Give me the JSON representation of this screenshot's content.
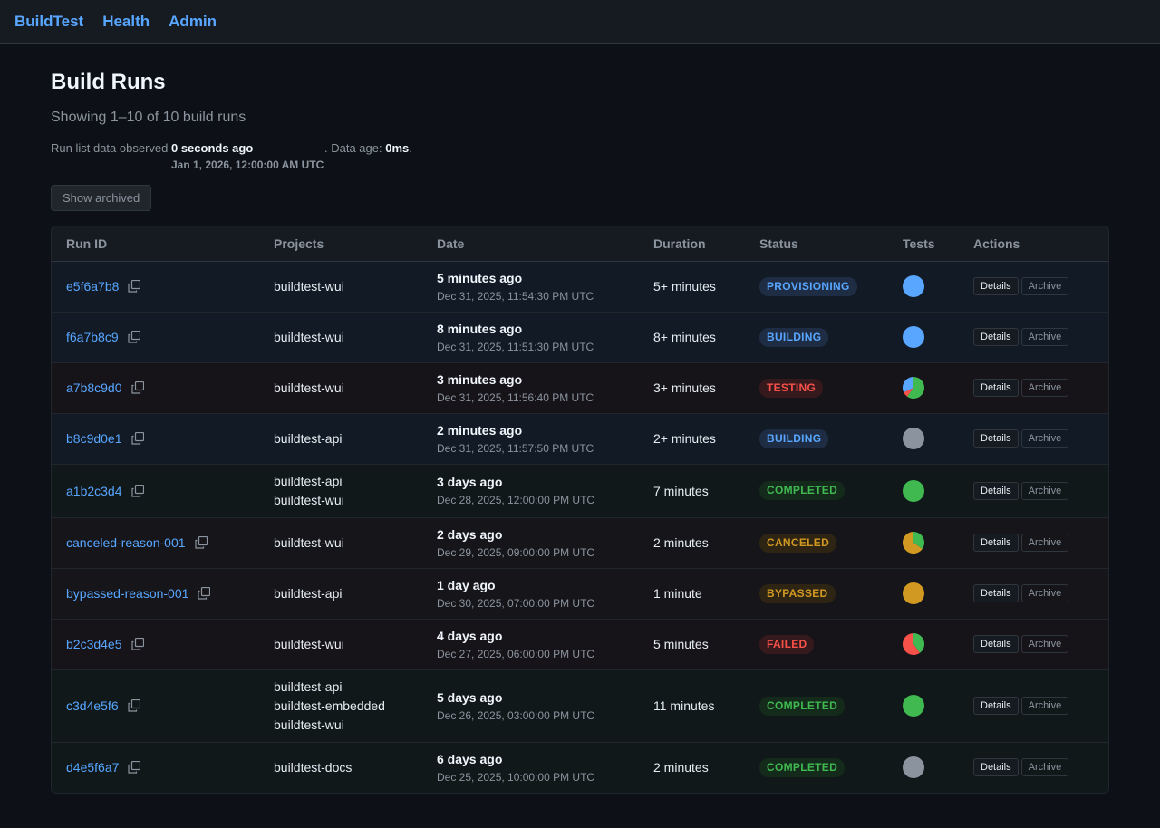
{
  "nav": {
    "brand": "BuildTest",
    "health": "Health",
    "admin": "Admin"
  },
  "page": {
    "title": "Build Runs",
    "subtitle": "Showing 1–10 of 10 build runs",
    "observed_prefix": "Run list data observed",
    "observed_ago": "0 seconds ago",
    "data_age_prefix": ". Data age:",
    "data_age_value": "0ms",
    "data_age_suffix": ".",
    "observed_timestamp": "Jan 1, 2026, 12:00:00 AM UTC",
    "show_archived_label": "Show archived"
  },
  "table": {
    "headers": {
      "run_id": "Run ID",
      "projects": "Projects",
      "date": "Date",
      "duration": "Duration",
      "status": "Status",
      "tests": "Tests",
      "actions": "Actions"
    },
    "details_label": "Details",
    "archive_label": "Archive"
  },
  "colors": {
    "passed": "#3fb950",
    "failed": "#f85149",
    "pending": "#58a6ff",
    "skipped": "#d29922",
    "none": "#8b949e",
    "link": "#58a6ff"
  },
  "runs": [
    {
      "id": "e5f6a7b8",
      "projects": [
        "buildtest-wui"
      ],
      "relative": "5 minutes ago",
      "absolute": "Dec 31, 2025, 11:54:30 PM UTC",
      "duration": "5+ minutes",
      "status": "PROVISIONING",
      "status_color": "blue",
      "row": "blue",
      "h": "h56",
      "tests": [
        {
          "color": "#58a6ff",
          "frac": 1
        }
      ]
    },
    {
      "id": "f6a7b8c9",
      "projects": [
        "buildtest-wui"
      ],
      "relative": "8 minutes ago",
      "absolute": "Dec 31, 2025, 11:51:30 PM UTC",
      "duration": "8+ minutes",
      "status": "BUILDING",
      "status_color": "blue",
      "row": "blue",
      "h": "h56",
      "tests": [
        {
          "color": "#58a6ff",
          "frac": 1
        }
      ]
    },
    {
      "id": "a7b8c9d0",
      "projects": [
        "buildtest-wui"
      ],
      "relative": "3 minutes ago",
      "absolute": "Dec 31, 2025, 11:56:40 PM UTC",
      "duration": "3+ minutes",
      "status": "TESTING",
      "status_color": "red",
      "row": "red",
      "h": "h56",
      "tests": [
        {
          "color": "#3fb950",
          "frac": 0.6
        },
        {
          "color": "#f85149",
          "frac": 0.08
        },
        {
          "color": "#58a6ff",
          "frac": 0.32
        }
      ]
    },
    {
      "id": "b8c9d0e1",
      "projects": [
        "buildtest-api"
      ],
      "relative": "2 minutes ago",
      "absolute": "Dec 31, 2025, 11:57:50 PM UTC",
      "duration": "2+ minutes",
      "status": "BUILDING",
      "status_color": "blue",
      "row": "blue",
      "h": "h56",
      "tests": [
        {
          "color": "#8b949e",
          "frac": 1
        }
      ]
    },
    {
      "id": "a1b2c3d4",
      "projects": [
        "buildtest-api",
        "buildtest-wui"
      ],
      "relative": "3 days ago",
      "absolute": "Dec 28, 2025, 12:00:00 PM UTC",
      "duration": "7 minutes",
      "status": "COMPLETED",
      "status_color": "green",
      "row": "green",
      "h": "h59",
      "tests": [
        {
          "color": "#3fb950",
          "frac": 1
        }
      ]
    },
    {
      "id": "canceled-reason-001",
      "projects": [
        "buildtest-wui"
      ],
      "relative": "2 days ago",
      "absolute": "Dec 29, 2025, 09:00:00 PM UTC",
      "duration": "2 minutes",
      "status": "CANCELED",
      "status_color": "amber",
      "row": "amber",
      "h": "h56",
      "tests": [
        {
          "color": "#3fb950",
          "frac": 0.35
        },
        {
          "color": "#d29922",
          "frac": 0.65
        }
      ]
    },
    {
      "id": "bypassed-reason-001",
      "projects": [
        "buildtest-api"
      ],
      "relative": "1 day ago",
      "absolute": "Dec 30, 2025, 07:00:00 PM UTC",
      "duration": "1 minute",
      "status": "BYPASSED",
      "status_color": "amber",
      "row": "amber",
      "h": "h56",
      "tests": [
        {
          "color": "#d29922",
          "frac": 1
        }
      ]
    },
    {
      "id": "b2c3d4e5",
      "projects": [
        "buildtest-wui"
      ],
      "relative": "4 days ago",
      "absolute": "Dec 27, 2025, 06:00:00 PM UTC",
      "duration": "5 minutes",
      "status": "FAILED",
      "status_color": "red",
      "row": "red",
      "h": "h56",
      "tests": [
        {
          "color": "#3fb950",
          "frac": 0.4
        },
        {
          "color": "#f85149",
          "frac": 0.6
        }
      ]
    },
    {
      "id": "c3d4e5f6",
      "projects": [
        "buildtest-api",
        "buildtest-embedded",
        "buildtest-wui"
      ],
      "relative": "5 days ago",
      "absolute": "Dec 26, 2025, 03:00:00 PM UTC",
      "duration": "11 minutes",
      "status": "COMPLETED",
      "status_color": "green",
      "row": "green",
      "h": "h80",
      "tests": [
        {
          "color": "#3fb950",
          "frac": 1
        }
      ]
    },
    {
      "id": "d4e5f6a7",
      "projects": [
        "buildtest-docs"
      ],
      "relative": "6 days ago",
      "absolute": "Dec 25, 2025, 10:00:00 PM UTC",
      "duration": "2 minutes",
      "status": "COMPLETED",
      "status_color": "green",
      "row": "green",
      "h": "h56",
      "tests": [
        {
          "color": "#8b949e",
          "frac": 1
        }
      ]
    }
  ]
}
